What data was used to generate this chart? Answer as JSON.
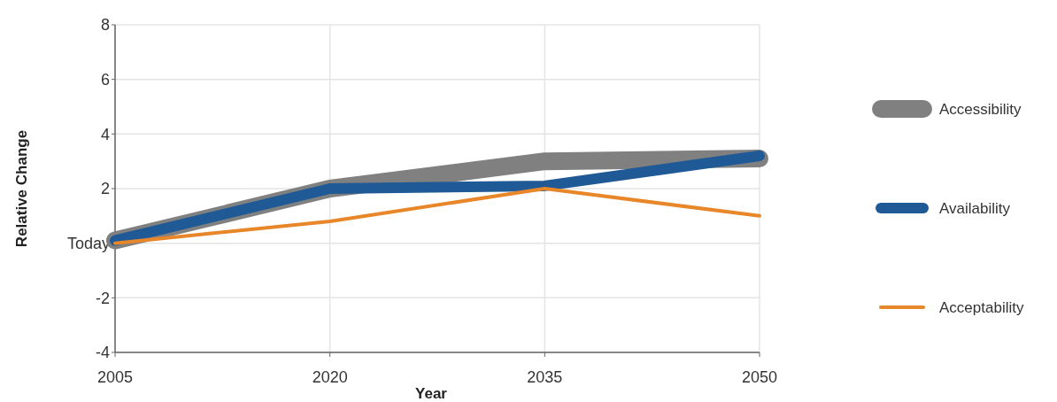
{
  "chart_data": {
    "type": "line",
    "xlabel": "Year",
    "ylabel": "Relative Change",
    "x": [
      2005,
      2020,
      2035,
      2050
    ],
    "xlim": [
      2005,
      2050
    ],
    "xticks": [
      2005,
      2020,
      2035,
      2050
    ],
    "ylim": [
      -4,
      8
    ],
    "yticks": [
      -4,
      -2,
      {
        "value": 0,
        "label": "Today"
      },
      2,
      4,
      6,
      8
    ],
    "grid": true,
    "legend": "right",
    "line_style": "solid",
    "series": [
      {
        "name": "Accessibility",
        "color": "#808080",
        "values": [
          0.1,
          2.0,
          3.0,
          3.1
        ]
      },
      {
        "name": "Availability",
        "color": "#1f5a96",
        "values": [
          0.1,
          2.0,
          2.1,
          3.2
        ]
      },
      {
        "name": "Acceptability",
        "color": "#e8862a",
        "values": [
          0.0,
          0.8,
          2.0,
          1.0
        ]
      }
    ]
  }
}
